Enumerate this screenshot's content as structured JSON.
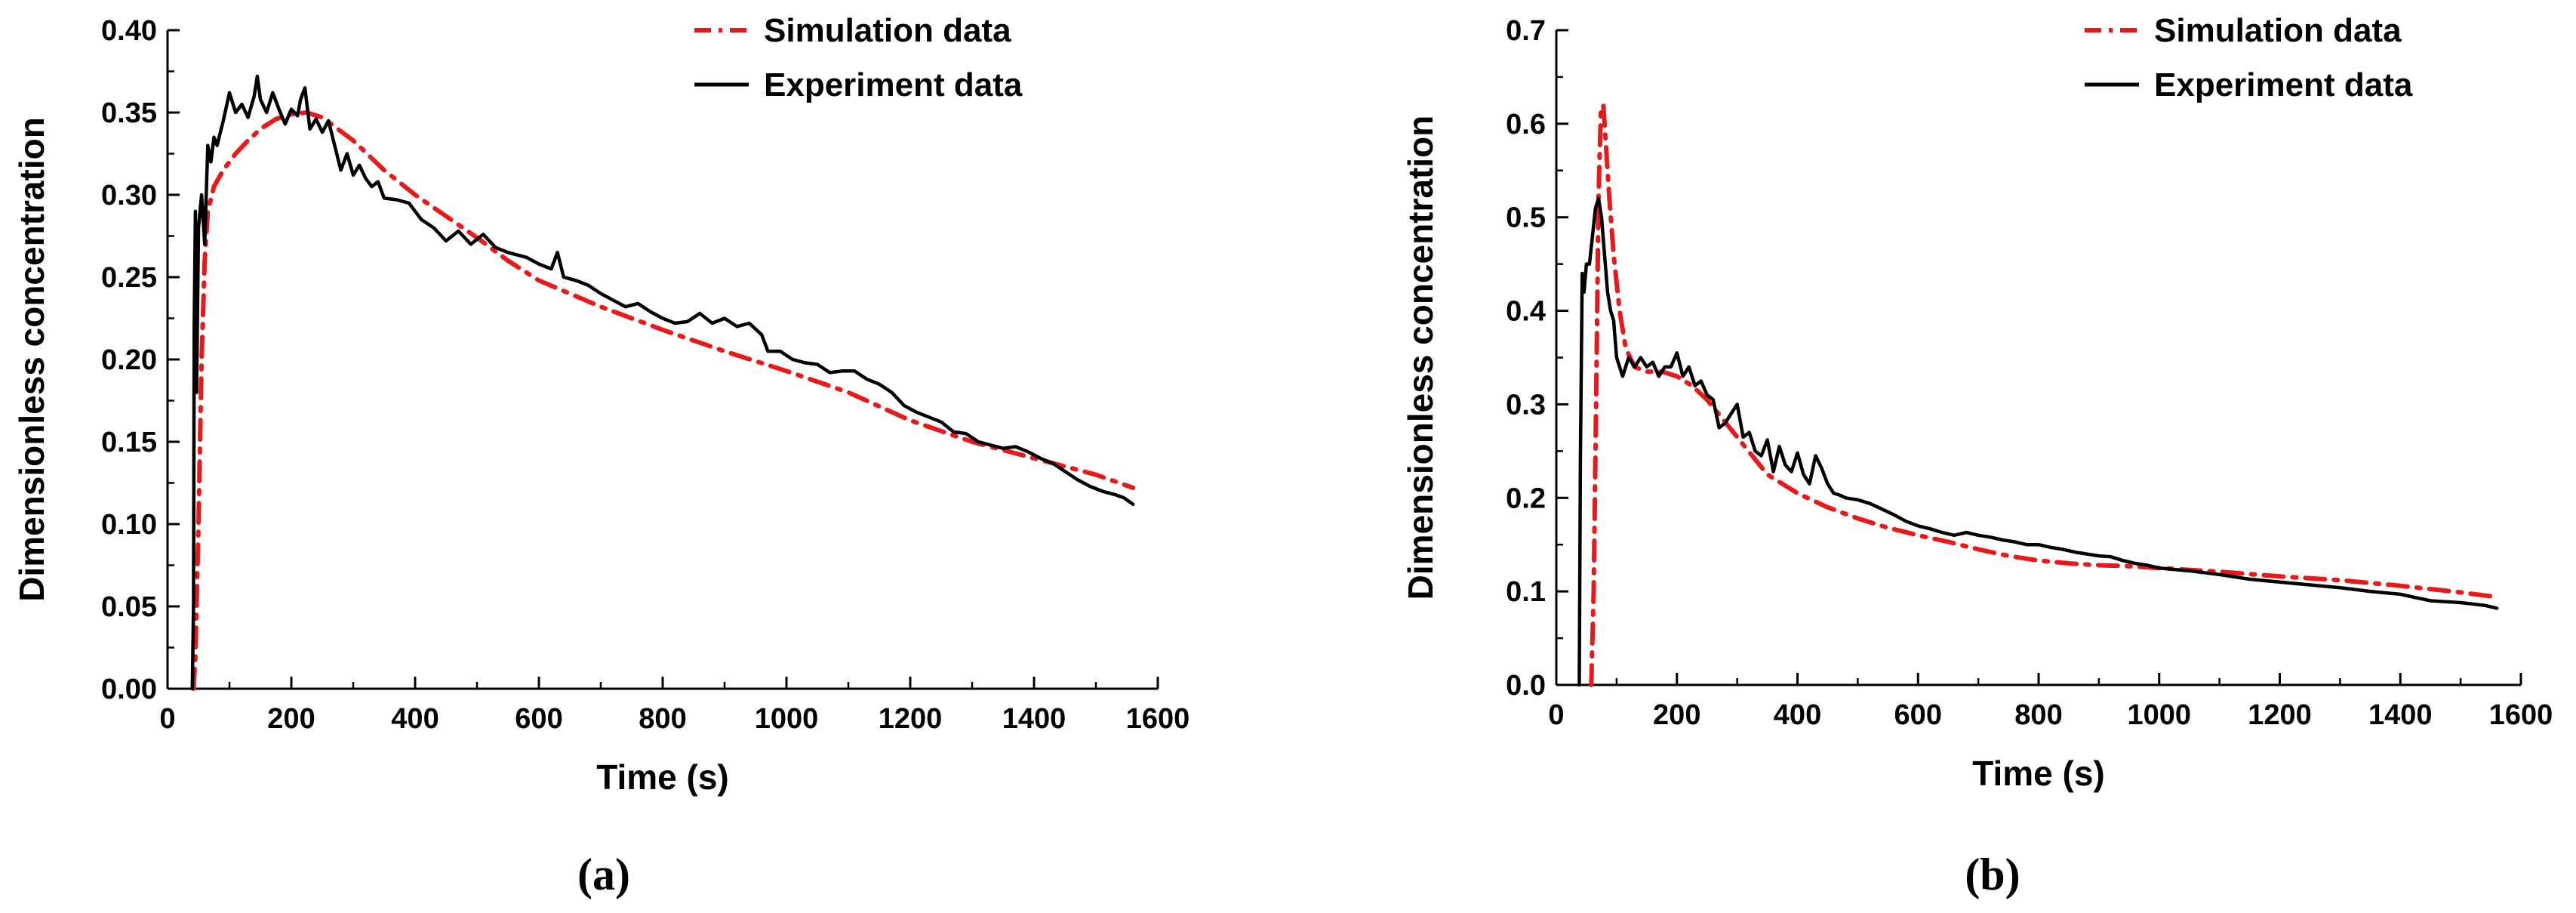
{
  "chart_data": [
    {
      "type": "line",
      "panel_label": "(a)",
      "xlabel": "Time (s)",
      "ylabel": "Dimensionless concentration",
      "xlim": [
        0,
        1600
      ],
      "ylim": [
        0,
        0.4
      ],
      "xticks": [
        "0",
        "200",
        "400",
        "600",
        "800",
        "1000",
        "1200",
        "1400",
        "1600"
      ],
      "yticks": [
        "0.00",
        "0.05",
        "0.10",
        "0.15",
        "0.20",
        "0.25",
        "0.30",
        "0.35",
        "0.40"
      ],
      "legend_position": "top-right",
      "series": [
        {
          "name": "Simulation data",
          "style": "dash-dot",
          "color": "#e8191b",
          "points": [
            [
              42,
              0
            ],
            [
              45,
              0.02
            ],
            [
              50,
              0.1
            ],
            [
              55,
              0.2
            ],
            [
              60,
              0.26
            ],
            [
              65,
              0.29
            ],
            [
              75,
              0.305
            ],
            [
              90,
              0.315
            ],
            [
              110,
              0.325
            ],
            [
              130,
              0.333
            ],
            [
              150,
              0.34
            ],
            [
              175,
              0.346
            ],
            [
              200,
              0.349
            ],
            [
              225,
              0.35
            ],
            [
              250,
              0.347
            ],
            [
              275,
              0.34
            ],
            [
              300,
              0.333
            ],
            [
              350,
              0.315
            ],
            [
              400,
              0.3
            ],
            [
              450,
              0.287
            ],
            [
              500,
              0.274
            ],
            [
              550,
              0.26
            ],
            [
              600,
              0.248
            ],
            [
              700,
              0.232
            ],
            [
              800,
              0.218
            ],
            [
              900,
              0.205
            ],
            [
              1000,
              0.193
            ],
            [
              1100,
              0.18
            ],
            [
              1200,
              0.163
            ],
            [
              1300,
              0.15
            ],
            [
              1400,
              0.14
            ],
            [
              1500,
              0.13
            ],
            [
              1560,
              0.122
            ]
          ]
        },
        {
          "name": "Experiment data",
          "style": "solid",
          "color": "#000000",
          "points": [
            [
              40,
              0
            ],
            [
              42,
              0.05
            ],
            [
              43,
              0.22
            ],
            [
              45,
              0.29
            ],
            [
              47,
              0.18
            ],
            [
              50,
              0.28
            ],
            [
              55,
              0.3
            ],
            [
              60,
              0.27
            ],
            [
              65,
              0.33
            ],
            [
              70,
              0.32
            ],
            [
              75,
              0.335
            ],
            [
              80,
              0.33
            ],
            [
              90,
              0.345
            ],
            [
              100,
              0.362
            ],
            [
              110,
              0.35
            ],
            [
              120,
              0.355
            ],
            [
              130,
              0.347
            ],
            [
              140,
              0.36
            ],
            [
              145,
              0.372
            ],
            [
              150,
              0.358
            ],
            [
              160,
              0.35
            ],
            [
              170,
              0.362
            ],
            [
              180,
              0.352
            ],
            [
              190,
              0.343
            ],
            [
              200,
              0.352
            ],
            [
              210,
              0.348
            ],
            [
              215,
              0.358
            ],
            [
              222,
              0.365
            ],
            [
              230,
              0.34
            ],
            [
              240,
              0.346
            ],
            [
              250,
              0.338
            ],
            [
              260,
              0.345
            ],
            [
              270,
              0.33
            ],
            [
              280,
              0.315
            ],
            [
              290,
              0.325
            ],
            [
              300,
              0.312
            ],
            [
              310,
              0.318
            ],
            [
              320,
              0.31
            ],
            [
              330,
              0.305
            ],
            [
              340,
              0.308
            ],
            [
              350,
              0.298
            ],
            [
              370,
              0.297
            ],
            [
              390,
              0.295
            ],
            [
              410,
              0.285
            ],
            [
              430,
              0.28
            ],
            [
              450,
              0.272
            ],
            [
              470,
              0.278
            ],
            [
              490,
              0.27
            ],
            [
              510,
              0.276
            ],
            [
              530,
              0.268
            ],
            [
              550,
              0.265
            ],
            [
              580,
              0.262
            ],
            [
              600,
              0.258
            ],
            [
              620,
              0.255
            ],
            [
              630,
              0.265
            ],
            [
              640,
              0.25
            ],
            [
              660,
              0.248
            ],
            [
              680,
              0.245
            ],
            [
              700,
              0.24
            ],
            [
              720,
              0.236
            ],
            [
              740,
              0.232
            ],
            [
              760,
              0.234
            ],
            [
              780,
              0.229
            ],
            [
              800,
              0.225
            ],
            [
              820,
              0.222
            ],
            [
              840,
              0.223
            ],
            [
              860,
              0.228
            ],
            [
              880,
              0.222
            ],
            [
              900,
              0.225
            ],
            [
              920,
              0.22
            ],
            [
              940,
              0.222
            ],
            [
              960,
              0.215
            ],
            [
              970,
              0.205
            ],
            [
              990,
              0.205
            ],
            [
              1010,
              0.2
            ],
            [
              1030,
              0.198
            ],
            [
              1050,
              0.197
            ],
            [
              1070,
              0.192
            ],
            [
              1090,
              0.193
            ],
            [
              1110,
              0.193
            ],
            [
              1130,
              0.188
            ],
            [
              1150,
              0.185
            ],
            [
              1170,
              0.18
            ],
            [
              1190,
              0.172
            ],
            [
              1210,
              0.168
            ],
            [
              1230,
              0.165
            ],
            [
              1250,
              0.162
            ],
            [
              1270,
              0.156
            ],
            [
              1290,
              0.155
            ],
            [
              1310,
              0.15
            ],
            [
              1330,
              0.148
            ],
            [
              1350,
              0.146
            ],
            [
              1370,
              0.147
            ],
            [
              1390,
              0.144
            ],
            [
              1410,
              0.14
            ],
            [
              1430,
              0.137
            ],
            [
              1450,
              0.132
            ],
            [
              1470,
              0.127
            ],
            [
              1490,
              0.123
            ],
            [
              1510,
              0.12
            ],
            [
              1530,
              0.118
            ],
            [
              1545,
              0.116
            ],
            [
              1560,
              0.112
            ]
          ]
        }
      ]
    },
    {
      "type": "line",
      "panel_label": "(b)",
      "xlabel": "Time (s)",
      "ylabel": "Dimensionless concentration",
      "xlim": [
        0,
        1600
      ],
      "ylim": [
        0,
        0.7
      ],
      "xticks": [
        "0",
        "200",
        "400",
        "600",
        "800",
        "1000",
        "1200",
        "1400",
        "1600"
      ],
      "yticks": [
        "0.0",
        "0.1",
        "0.2",
        "0.3",
        "0.4",
        "0.5",
        "0.6",
        "0.7"
      ],
      "legend_position": "top-right",
      "series": [
        {
          "name": "Simulation data",
          "style": "dash-dot",
          "color": "#e8191b",
          "points": [
            [
              58,
              0
            ],
            [
              62,
              0.1
            ],
            [
              66,
              0.3
            ],
            [
              70,
              0.52
            ],
            [
              74,
              0.615
            ],
            [
              78,
              0.62
            ],
            [
              82,
              0.58
            ],
            [
              88,
              0.52
            ],
            [
              95,
              0.46
            ],
            [
              105,
              0.4
            ],
            [
              115,
              0.36
            ],
            [
              130,
              0.34
            ],
            [
              150,
              0.335
            ],
            [
              175,
              0.335
            ],
            [
              200,
              0.33
            ],
            [
              225,
              0.32
            ],
            [
              250,
              0.305
            ],
            [
              275,
              0.285
            ],
            [
              300,
              0.265
            ],
            [
              325,
              0.245
            ],
            [
              350,
              0.225
            ],
            [
              400,
              0.205
            ],
            [
              450,
              0.19
            ],
            [
              500,
              0.178
            ],
            [
              550,
              0.168
            ],
            [
              600,
              0.16
            ],
            [
              650,
              0.153
            ],
            [
              700,
              0.145
            ],
            [
              750,
              0.138
            ],
            [
              800,
              0.133
            ],
            [
              850,
              0.13
            ],
            [
              900,
              0.128
            ],
            [
              950,
              0.127
            ],
            [
              1000,
              0.125
            ],
            [
              1100,
              0.121
            ],
            [
              1200,
              0.116
            ],
            [
              1300,
              0.112
            ],
            [
              1400,
              0.106
            ],
            [
              1500,
              0.099
            ],
            [
              1560,
              0.094
            ]
          ]
        },
        {
          "name": "Experiment data",
          "style": "solid",
          "color": "#000000",
          "points": [
            [
              38,
              0
            ],
            [
              40,
              0.24
            ],
            [
              43,
              0.44
            ],
            [
              46,
              0.42
            ],
            [
              50,
              0.45
            ],
            [
              55,
              0.45
            ],
            [
              60,
              0.48
            ],
            [
              65,
              0.51
            ],
            [
              70,
              0.52
            ],
            [
              75,
              0.5
            ],
            [
              80,
              0.46
            ],
            [
              85,
              0.42
            ],
            [
              90,
              0.4
            ],
            [
              95,
              0.39
            ],
            [
              100,
              0.35
            ],
            [
              110,
              0.33
            ],
            [
              120,
              0.35
            ],
            [
              130,
              0.34
            ],
            [
              140,
              0.35
            ],
            [
              150,
              0.34
            ],
            [
              160,
              0.345
            ],
            [
              170,
              0.33
            ],
            [
              180,
              0.34
            ],
            [
              190,
              0.34
            ],
            [
              200,
              0.355
            ],
            [
              210,
              0.33
            ],
            [
              220,
              0.34
            ],
            [
              230,
              0.32
            ],
            [
              240,
              0.325
            ],
            [
              250,
              0.31
            ],
            [
              260,
              0.305
            ],
            [
              270,
              0.275
            ],
            [
              280,
              0.28
            ],
            [
              290,
              0.29
            ],
            [
              300,
              0.3
            ],
            [
              310,
              0.265
            ],
            [
              320,
              0.27
            ],
            [
              330,
              0.25
            ],
            [
              340,
              0.245
            ],
            [
              350,
              0.262
            ],
            [
              360,
              0.228
            ],
            [
              370,
              0.255
            ],
            [
              380,
              0.235
            ],
            [
              390,
              0.228
            ],
            [
              400,
              0.248
            ],
            [
              410,
              0.225
            ],
            [
              420,
              0.215
            ],
            [
              430,
              0.245
            ],
            [
              440,
              0.232
            ],
            [
              450,
              0.215
            ],
            [
              460,
              0.205
            ],
            [
              470,
              0.203
            ],
            [
              480,
              0.2
            ],
            [
              500,
              0.198
            ],
            [
              520,
              0.194
            ],
            [
              540,
              0.188
            ],
            [
              560,
              0.182
            ],
            [
              580,
              0.175
            ],
            [
              600,
              0.17
            ],
            [
              620,
              0.167
            ],
            [
              640,
              0.163
            ],
            [
              660,
              0.16
            ],
            [
              680,
              0.163
            ],
            [
              700,
              0.16
            ],
            [
              720,
              0.158
            ],
            [
              740,
              0.155
            ],
            [
              760,
              0.153
            ],
            [
              780,
              0.15
            ],
            [
              800,
              0.15
            ],
            [
              820,
              0.147
            ],
            [
              840,
              0.145
            ],
            [
              860,
              0.142
            ],
            [
              880,
              0.14
            ],
            [
              900,
              0.138
            ],
            [
              920,
              0.137
            ],
            [
              940,
              0.133
            ],
            [
              960,
              0.13
            ],
            [
              980,
              0.128
            ],
            [
              1000,
              0.125
            ],
            [
              1050,
              0.122
            ],
            [
              1100,
              0.118
            ],
            [
              1150,
              0.113
            ],
            [
              1200,
              0.11
            ],
            [
              1250,
              0.107
            ],
            [
              1300,
              0.104
            ],
            [
              1350,
              0.1
            ],
            [
              1400,
              0.097
            ],
            [
              1450,
              0.09
            ],
            [
              1500,
              0.088
            ],
            [
              1540,
              0.085
            ],
            [
              1560,
              0.082
            ]
          ]
        }
      ]
    }
  ]
}
